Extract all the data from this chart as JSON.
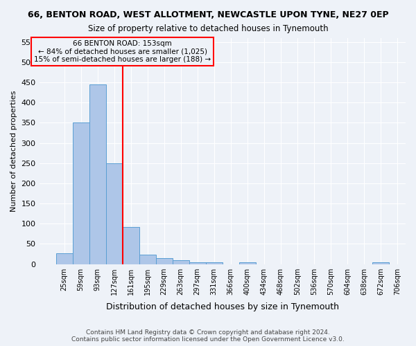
{
  "title_line1": "66, BENTON ROAD, WEST ALLOTMENT, NEWCASTLE UPON TYNE, NE27 0EP",
  "title_line2": "Size of property relative to detached houses in Tynemouth",
  "xlabel": "Distribution of detached houses by size in Tynemouth",
  "ylabel": "Number of detached properties",
  "bar_values": [
    27,
    350,
    445,
    250,
    92,
    24,
    14,
    10,
    5,
    5,
    0,
    5,
    0,
    0,
    0,
    0,
    0,
    0,
    0,
    5
  ],
  "bar_labels": [
    "25sqm",
    "59sqm",
    "93sqm",
    "127sqm",
    "161sqm",
    "195sqm",
    "229sqm",
    "263sqm",
    "297sqm",
    "331sqm",
    "366sqm",
    "400sqm",
    "434sqm",
    "468sqm",
    "502sqm",
    "536sqm",
    "570sqm",
    "604sqm",
    "638sqm",
    "672sqm",
    "706sqm"
  ],
  "bar_color": "#aec6e8",
  "bar_edge_color": "#5a9fd4",
  "vline_x": 4,
  "vline_color": "red",
  "annotation_text": "66 BENTON ROAD: 153sqm\n← 84% of detached houses are smaller (1,025)\n15% of semi-detached houses are larger (188) →",
  "annotation_box_color": "red",
  "ylim": [
    0,
    560
  ],
  "yticks": [
    0,
    50,
    100,
    150,
    200,
    250,
    300,
    350,
    400,
    450,
    500,
    550
  ],
  "footnote": "Contains HM Land Registry data © Crown copyright and database right 2024.\nContains public sector information licensed under the Open Government Licence v3.0.",
  "bg_color": "#eef2f8",
  "grid_color": "#ffffff"
}
